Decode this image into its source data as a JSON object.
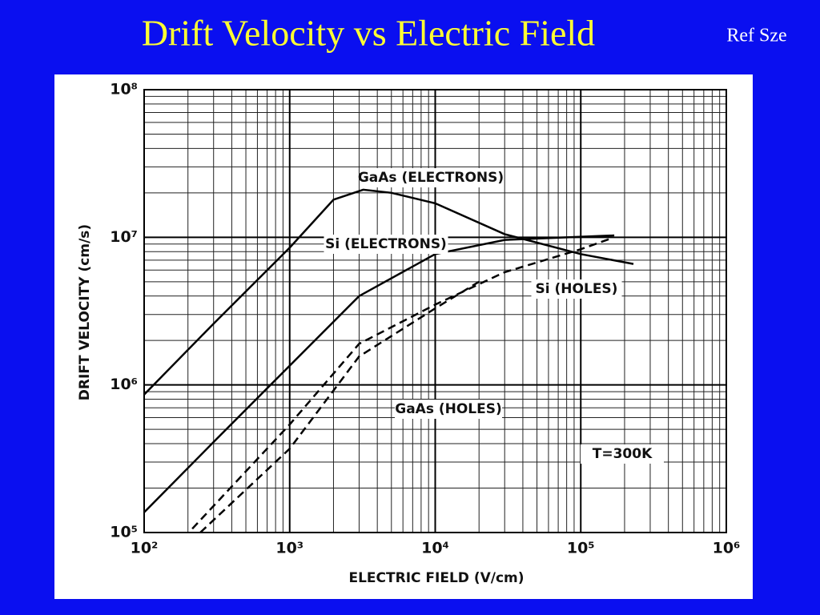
{
  "chart_data": {
    "type": "line",
    "title": "Drift Velocity vs Electric Field",
    "reference": "Ref Sze",
    "x_label": "ELECTRIC FIELD (V/cm)",
    "y_label": "DRIFT VELOCITY (cm/s)",
    "x_scale": "log",
    "y_scale": "log",
    "xlim": [
      100,
      1000000
    ],
    "ylim": [
      100000,
      100000000
    ],
    "xticks": [
      {
        "value": 100,
        "label": "10²"
      },
      {
        "value": 1000,
        "label": "10³"
      },
      {
        "value": 10000,
        "label": "10⁴"
      },
      {
        "value": 100000,
        "label": "10⁵"
      },
      {
        "value": 1000000,
        "label": "10⁶"
      }
    ],
    "yticks": [
      {
        "value": 100000,
        "label": "10⁵"
      },
      {
        "value": 1000000,
        "label": "10⁶"
      },
      {
        "value": 10000000,
        "label": "10⁷"
      },
      {
        "value": 100000000,
        "label": "10⁸"
      }
    ],
    "grid": true,
    "minor_grid": true,
    "annotation": "T=300K",
    "series": [
      {
        "name": "GaAs (ELECTRONS)",
        "color": "#000000",
        "style": "solid",
        "x": [
          100,
          300,
          1000,
          2000,
          3200,
          5000,
          10000,
          30000,
          100000,
          230000
        ],
        "values": [
          860000,
          2600000,
          8500000,
          18000000,
          21000000,
          20000000,
          17000000,
          10500000,
          7700000,
          6600000
        ]
      },
      {
        "name": "Si (ELECTRONS)",
        "color": "#000000",
        "style": "solid",
        "x": [
          100,
          300,
          1000,
          3000,
          10000,
          30000,
          170000
        ],
        "values": [
          137000,
          410000,
          1350000,
          4000000,
          7700000,
          9600000,
          10300000
        ]
      },
      {
        "name": "Si (HOLES)",
        "color": "#000000",
        "style": "dashed",
        "x": [
          214,
          1000,
          3000,
          10000,
          30000,
          100000,
          160000
        ],
        "values": [
          106000,
          540000,
          1900000,
          3500000,
          5800000,
          8300000,
          9800000
        ]
      },
      {
        "name": "GaAs (HOLES)",
        "color": "#000000",
        "style": "dashed",
        "x": [
          243,
          1000,
          3000,
          10000,
          20000
        ],
        "values": [
          100000,
          370000,
          1560000,
          3300000,
          5000000
        ]
      }
    ]
  }
}
